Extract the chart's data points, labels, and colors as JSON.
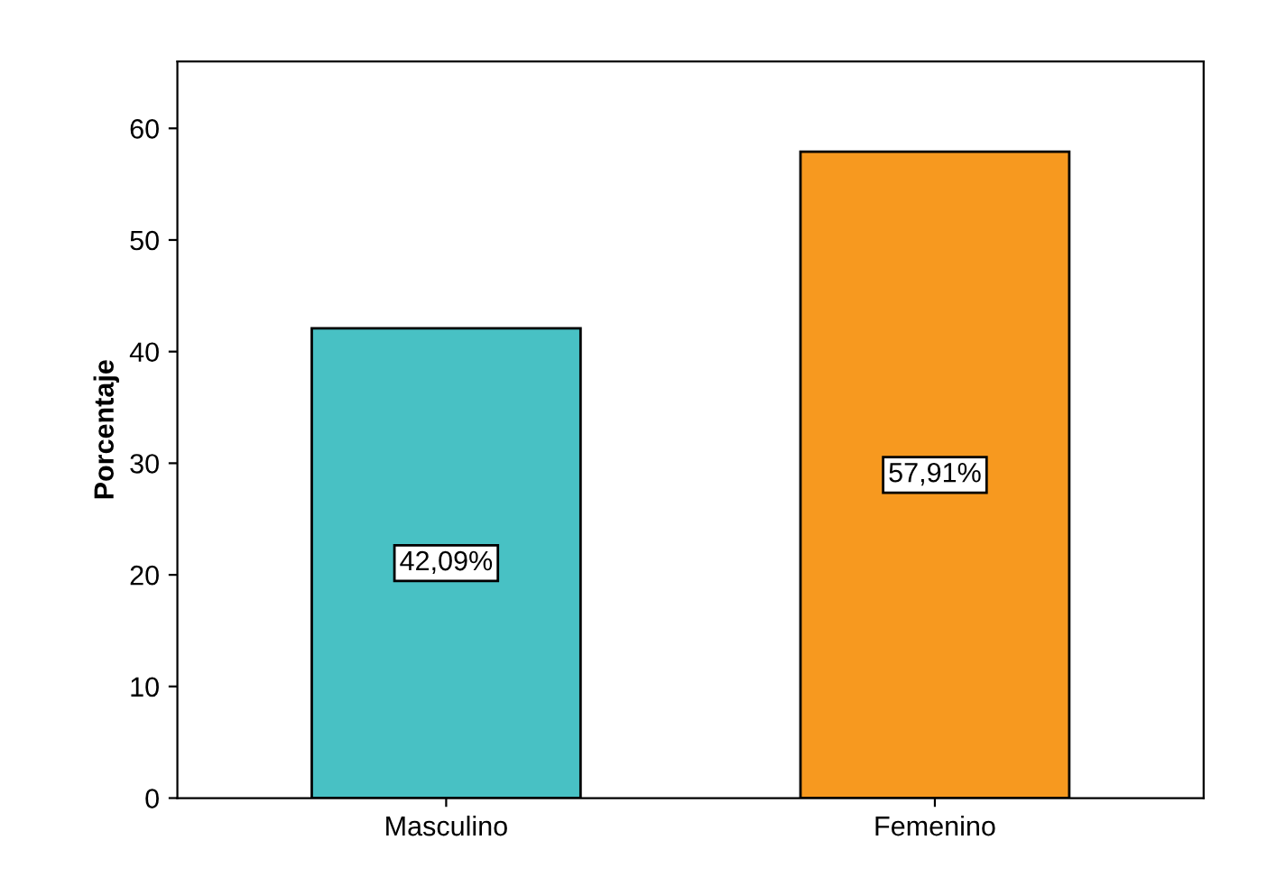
{
  "chart_data": {
    "type": "bar",
    "ylabel": "Porcentaje",
    "categories": [
      "Masculino",
      "Femenino"
    ],
    "values": [
      42.09,
      57.91
    ],
    "colors": [
      "#48c1c4",
      "#f7991f"
    ],
    "value_labels": [
      "42,09%",
      "57,91%"
    ],
    "ylim": [
      0,
      66
    ],
    "yticks": [
      0,
      10,
      20,
      30,
      40,
      50,
      60
    ],
    "grid": false,
    "legend": false
  }
}
